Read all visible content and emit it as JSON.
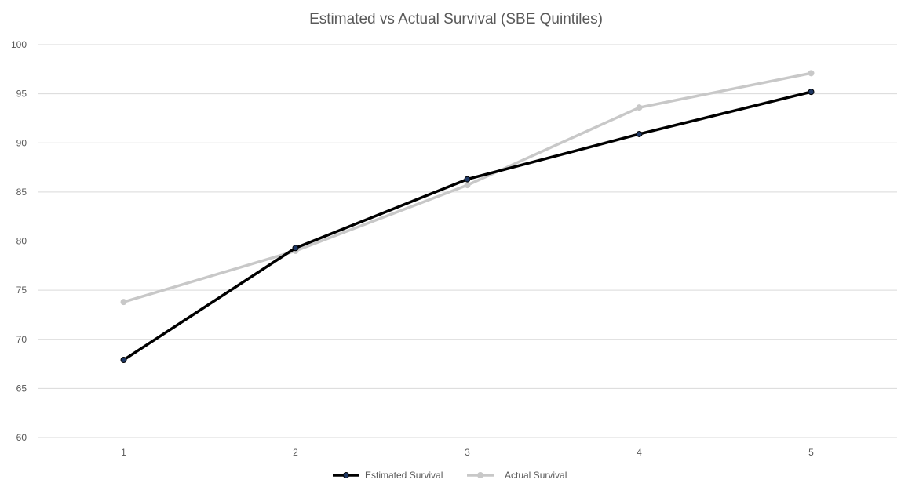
{
  "chart_data": {
    "type": "line",
    "title": "Estimated vs Actual Survival (SBE Quintiles)",
    "xlabel": "",
    "ylabel": "",
    "categories": [
      "1",
      "2",
      "3",
      "4",
      "5"
    ],
    "ylim": [
      60,
      100
    ],
    "yticks": [
      60,
      65,
      70,
      75,
      80,
      85,
      90,
      95,
      100
    ],
    "grid": true,
    "legend_position": "bottom",
    "series": [
      {
        "name": "Estimated Survival",
        "values": [
          67.9,
          79.3,
          86.3,
          90.9,
          95.2
        ],
        "color": "#000000",
        "marker_color": "#1f3864"
      },
      {
        "name": "Actual Survival",
        "values": [
          73.8,
          79.0,
          85.7,
          93.6,
          97.1
        ],
        "color": "#c8c8c8",
        "marker_color": "#c8c8c8"
      }
    ]
  }
}
